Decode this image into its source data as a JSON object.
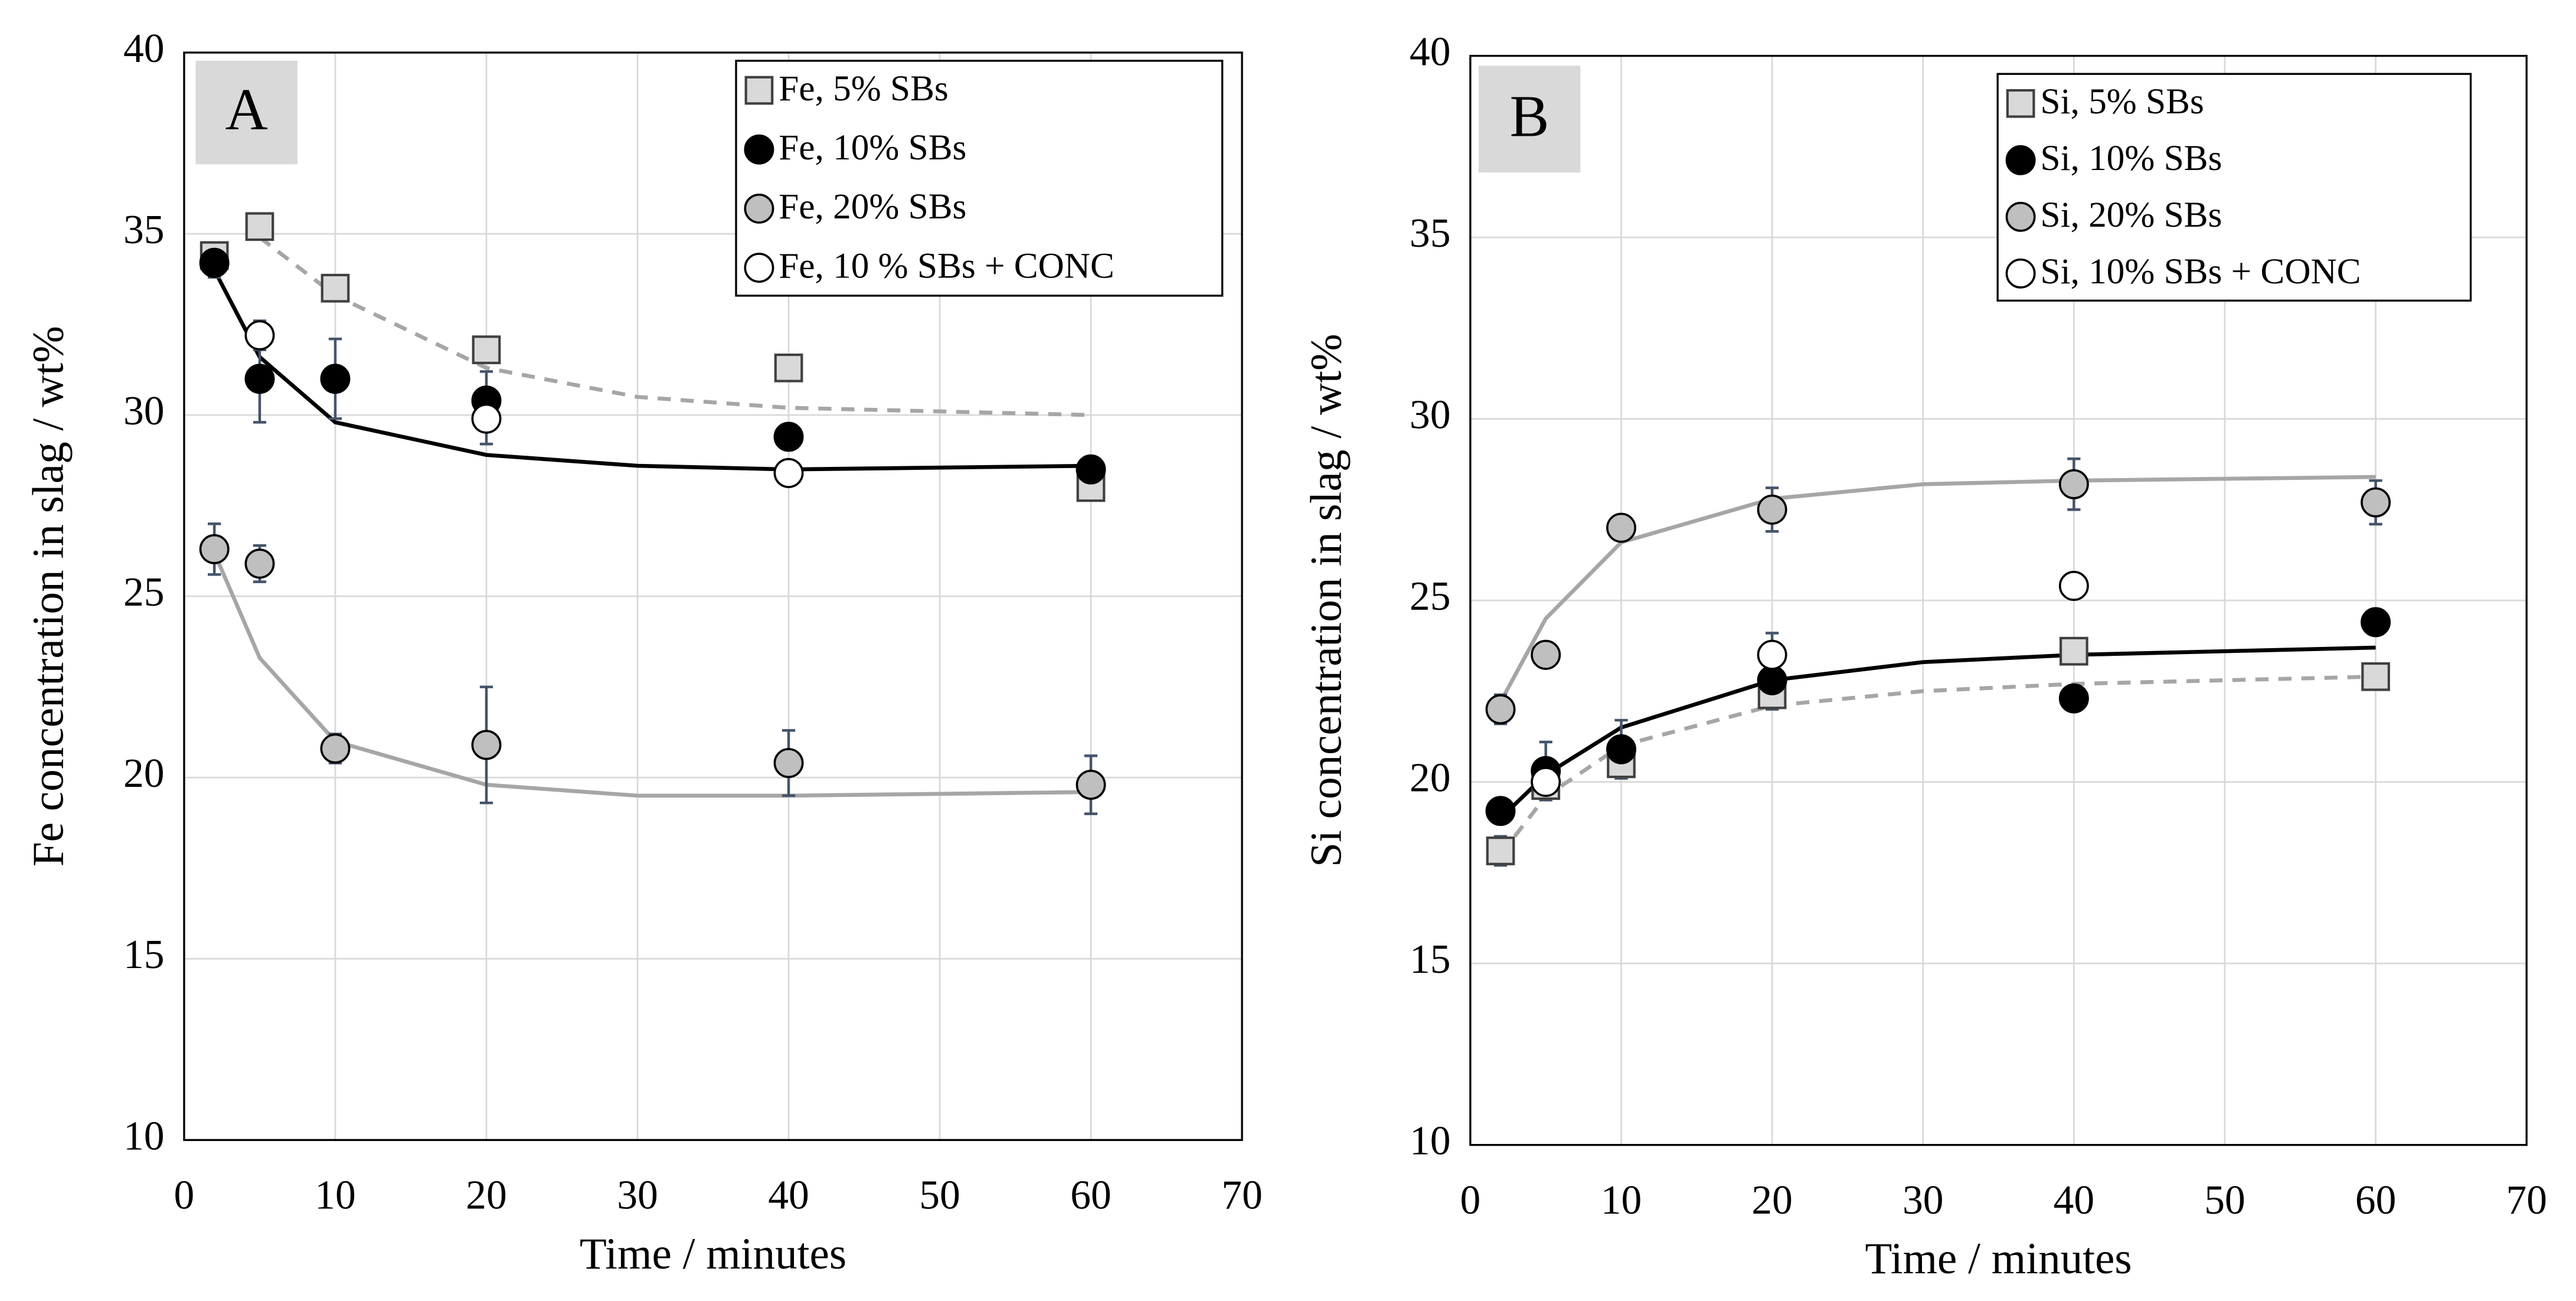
{
  "chart_data": [
    {
      "type": "scatter",
      "panel_label": "A",
      "x_label": "Time / minutes",
      "y_label": "Fe concentration in slag / wt%",
      "xlim": [
        0,
        70
      ],
      "xticks": [
        0,
        10,
        20,
        30,
        40,
        50,
        60,
        70
      ],
      "ylim": [
        10,
        40
      ],
      "yticks": [
        10,
        15,
        20,
        25,
        30,
        35,
        40
      ],
      "grid": true,
      "legend": "upper right",
      "series": [
        {
          "name": "Fe, 5% SBs",
          "marker": "square",
          "color": "#d9d9d9",
          "x": [
            2,
            5,
            10,
            20,
            40,
            60
          ],
          "values": [
            34.4,
            35.2,
            33.5,
            31.8,
            31.3,
            28.0
          ],
          "errors": [
            0.2,
            0.2,
            0.2,
            0.3,
            0.2,
            0.2
          ],
          "fit": {
            "color": "#a6a6a6",
            "dash": true,
            "x": [
              5,
              10,
              20,
              30,
              40,
              60
            ],
            "values": [
              34.9,
              33.3,
              31.3,
              30.5,
              30.2,
              30.0
            ]
          }
        },
        {
          "name": "Fe, 10% SBs",
          "marker": "circle",
          "color": "#000000",
          "x": [
            2,
            5,
            10,
            20,
            40,
            60
          ],
          "values": [
            34.2,
            31.0,
            31.0,
            30.4,
            29.4,
            28.5
          ],
          "errors": [
            0.4,
            1.2,
            1.1,
            0.8,
            0.3,
            0.2
          ],
          "fit": {
            "color": "#000000",
            "dash": false,
            "x": [
              2,
              5,
              10,
              20,
              30,
              40,
              60
            ],
            "values": [
              34.0,
              31.6,
              29.8,
              28.9,
              28.6,
              28.5,
              28.6
            ]
          }
        },
        {
          "name": "Fe, 20% SBs",
          "marker": "circle",
          "color": "#bfbfbf",
          "x": [
            2,
            5,
            10,
            20,
            40,
            60
          ],
          "values": [
            26.3,
            25.9,
            20.8,
            20.9,
            20.4,
            19.8
          ],
          "errors": [
            0.7,
            0.5,
            0.4,
            1.6,
            0.9,
            0.8
          ],
          "fit": {
            "color": "#a6a6a6",
            "dash": false,
            "x": [
              2,
              5,
              10,
              20,
              30,
              40,
              60
            ],
            "values": [
              26.2,
              23.3,
              21.0,
              19.8,
              19.5,
              19.5,
              19.6
            ]
          }
        },
        {
          "name": "Fe, 10 % SBs + CONC",
          "marker": "circle",
          "color": "#ffffff",
          "x": [
            5,
            20,
            40
          ],
          "values": [
            32.2,
            29.9,
            28.4
          ],
          "errors": [
            0.4,
            0.7,
            0.3
          ]
        }
      ]
    },
    {
      "type": "scatter",
      "panel_label": "B",
      "x_label": "Time / minutes",
      "y_label": "Si concentration in slag / wt%",
      "xlim": [
        0,
        70
      ],
      "xticks": [
        0,
        10,
        20,
        30,
        40,
        50,
        60,
        70
      ],
      "ylim": [
        10,
        40
      ],
      "yticks": [
        10,
        15,
        20,
        25,
        30,
        35,
        40
      ],
      "grid": true,
      "legend": "upper right",
      "series": [
        {
          "name": "Si, 5% SBs",
          "marker": "square",
          "color": "#d9d9d9",
          "x": [
            2,
            5,
            10,
            20,
            40,
            60
          ],
          "values": [
            18.1,
            19.9,
            20.5,
            22.4,
            23.6,
            22.9
          ],
          "errors": [
            0.4,
            0.3,
            0.4,
            0.4,
            0.2,
            0.2
          ],
          "fit": {
            "color": "#a6a6a6",
            "dash": true,
            "x": [
              2,
              5,
              10,
              20,
              30,
              40,
              60
            ],
            "values": [
              18.0,
              19.6,
              21.0,
              22.1,
              22.5,
              22.7,
              22.9
            ]
          }
        },
        {
          "name": "Si, 10% SBs",
          "marker": "circle",
          "color": "#000000",
          "x": [
            2,
            5,
            10,
            20,
            40,
            60
          ],
          "values": [
            19.2,
            20.3,
            20.9,
            22.8,
            22.3,
            24.4
          ],
          "errors": [
            0.3,
            0.8,
            0.8,
            0.2,
            0.1,
            0.1
          ],
          "fit": {
            "color": "#000000",
            "dash": false,
            "x": [
              2,
              5,
              10,
              20,
              30,
              40,
              60
            ],
            "values": [
              19.0,
              20.2,
              21.5,
              22.8,
              23.3,
              23.5,
              23.7
            ]
          }
        },
        {
          "name": "Si, 20% SBs",
          "marker": "circle",
          "color": "#bfbfbf",
          "x": [
            2,
            5,
            10,
            20,
            40,
            60
          ],
          "values": [
            22.0,
            23.5,
            27.0,
            27.5,
            28.2,
            27.7
          ],
          "errors": [
            0.4,
            0.3,
            0.1,
            0.6,
            0.7,
            0.6
          ],
          "fit": {
            "color": "#a6a6a6",
            "dash": false,
            "x": [
              2,
              5,
              10,
              20,
              30,
              40,
              60
            ],
            "values": [
              22.2,
              24.5,
              26.6,
              27.8,
              28.2,
              28.3,
              28.4
            ]
          }
        },
        {
          "name": "Si, 10% SBs + CONC",
          "marker": "circle",
          "color": "#ffffff",
          "x": [
            5,
            20,
            40
          ],
          "values": [
            20.0,
            23.5,
            25.4
          ],
          "errors": [
            0.3,
            0.6,
            0.1
          ]
        }
      ]
    }
  ]
}
